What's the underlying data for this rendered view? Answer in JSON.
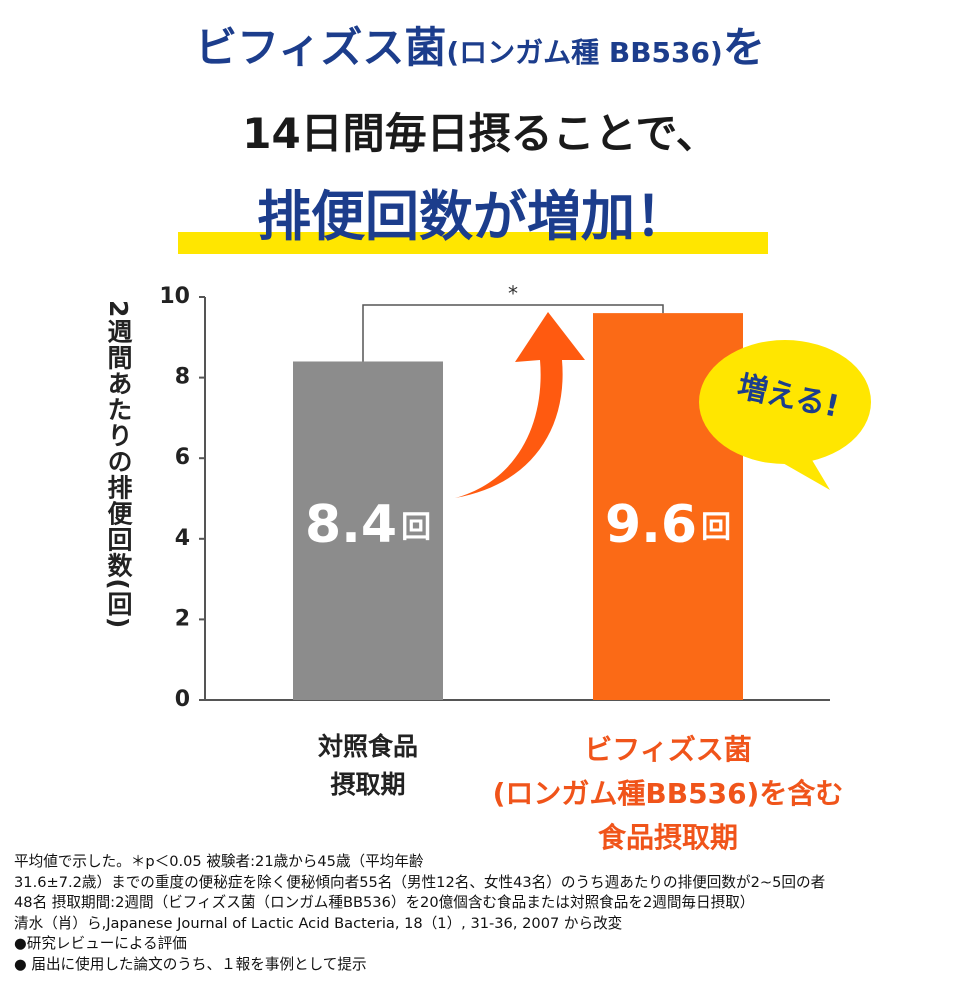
{
  "title": {
    "line1": [
      "ビフィズス菌",
      "(ロンガム種 BB536)",
      "を"
    ],
    "line2": "14日間毎日摂ることで、",
    "line3": "排便回数が増加！"
  },
  "chart_data": {
    "type": "bar",
    "ylabel": "2週間あたりの排便回数(回)",
    "categories": [
      "対照食品\n摂取期",
      "ビフィズス菌\n(ロンガム種BB536)を含む\n食品摂取期"
    ],
    "category_colors": [
      "#222222",
      "#f0541a"
    ],
    "values": [
      8.4,
      9.6
    ],
    "value_unit": "回",
    "colors": [
      "#8c8c8c",
      "#fb6a16"
    ],
    "ylim": [
      0,
      10
    ],
    "yticks": [
      0,
      2,
      4,
      6,
      8,
      10
    ],
    "grid": false,
    "significance": "*",
    "callout": "増える!"
  },
  "footnotes": [
    "平均値で示した。＊p＜0.05 被験者:21歳から45歳（平均年齢",
    "31.6±7.2歳）までの重度の便秘症を除く便秘傾向者55名（男性12名、女性43名）のうち週あたりの排便回数が2~5回の者",
    "48名 摂取期間:2週間（ビフィズス菌（ロンガム種BB536）を20億個含む食品または対照食品を2週間毎日摂取）",
    "清水（肖）ら,Japanese Journal of Lactic Acid Bacteria, 18（1）, 31-36, 2007 から改変",
    "●研究レビューによる評価",
    "● 届出に使用した論文のうち、１報を事例として提示"
  ]
}
